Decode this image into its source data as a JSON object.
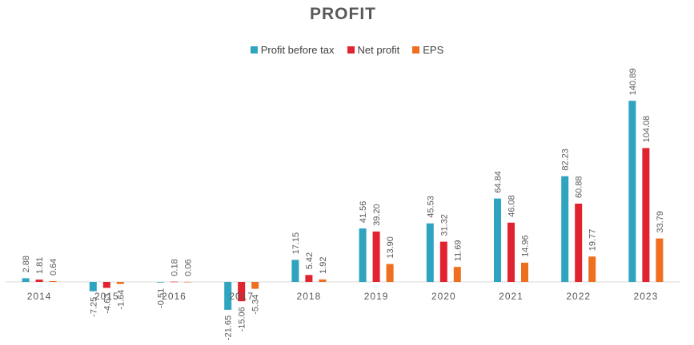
{
  "chart_data": {
    "type": "bar",
    "title": "PROFIT",
    "categories": [
      "2014",
      "2015",
      "2016",
      "2017",
      "2018",
      "2019",
      "2020",
      "2021",
      "2022",
      "2023"
    ],
    "series": [
      {
        "name": "Profit before tax",
        "color": "#2EA4C1",
        "values": [
          2.88,
          -7.25,
          -0.51,
          -21.65,
          17.15,
          41.56,
          45.53,
          64.84,
          82.23,
          140.89
        ]
      },
      {
        "name": "Net profit",
        "color": "#E0232E",
        "values": [
          1.81,
          -4.63,
          0.18,
          -15.06,
          5.42,
          39.2,
          31.32,
          46.08,
          60.88,
          104.08
        ]
      },
      {
        "name": "EPS",
        "color": "#EE6F1F",
        "values": [
          0.64,
          -1.64,
          0.06,
          -5.34,
          1.92,
          13.9,
          11.69,
          14.96,
          19.77,
          33.79
        ]
      }
    ],
    "data_labels": [
      [
        "2.88",
        "-7.25",
        "-0.51",
        "-21.65",
        "17.15",
        "41.56",
        "45.53",
        "64.84",
        "82.23",
        "140.89"
      ],
      [
        "1.81",
        "-4.63",
        "0.18",
        "-15.06",
        "5.42",
        "39.20",
        "31.32",
        "46.08",
        "60.88",
        "104.08"
      ],
      [
        "0.64",
        "-1.64",
        "0.06",
        "-5.34",
        "1.92",
        "13.90",
        "11.69",
        "14.96",
        "19.77",
        "33.79"
      ]
    ],
    "legend_position": "top",
    "grid": false,
    "xlabel": "",
    "ylabel": ""
  }
}
